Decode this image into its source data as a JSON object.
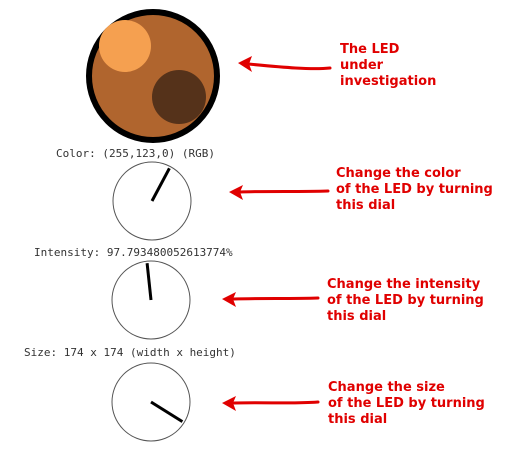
{
  "led": {
    "body_color": "#b0652e",
    "highlight_color": "#f5a050",
    "shadow_color": "#55321a",
    "rim_color": "#000000"
  },
  "color_readout": "Color: (255,123,0) (RGB)",
  "intensity_readout": "Intensity: 97.793480052613774%",
  "size_readout": "Size: 174 x 174 (width x height)",
  "annotations": {
    "led": "The LED\nunder\ninvestigation",
    "color_dial": "Change the color\nof the LED by turning\nthis dial",
    "intensity_dial": "Change the intensity\nof the LED by turning\nthis dial",
    "size_dial": "Change the size\nof the LED by turning\nthis dial"
  },
  "annotation_color": "#e00000",
  "dials": {
    "color_deg": 28,
    "intensity_deg": -6,
    "size_deg": 122
  }
}
